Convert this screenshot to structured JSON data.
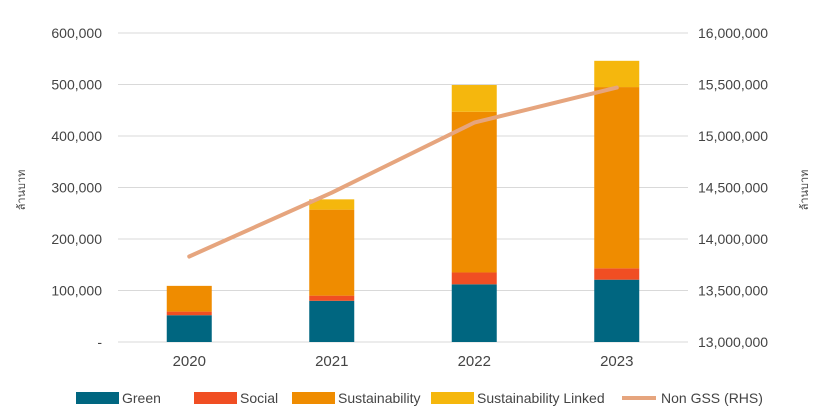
{
  "chart_data": {
    "type": "bar",
    "stacked": true,
    "title": "",
    "categories": [
      "2020",
      "2021",
      "2022",
      "2023"
    ],
    "series": [
      {
        "name": "Green",
        "color": "#006680",
        "values": [
          52000,
          80000,
          112000,
          121000
        ]
      },
      {
        "name": "Social",
        "color": "#f04e23",
        "values": [
          7000,
          10000,
          23000,
          22000
        ]
      },
      {
        "name": "Sustainability",
        "color": "#ef8c00",
        "values": [
          50000,
          167000,
          312000,
          352000
        ]
      },
      {
        "name": "Sustainability Linked",
        "color": "#f5b70d",
        "values": [
          0,
          20000,
          52000,
          51000
        ]
      }
    ],
    "line_series": {
      "name": "Non GSS (RHS)",
      "color": "#e6a57e",
      "axis": "right",
      "values": [
        13830000,
        14450000,
        15130000,
        15470000
      ]
    },
    "left_axis": {
      "label": "ล้านบาท",
      "ylim": [
        0,
        600000
      ],
      "ticks": [
        "-",
        "100,000",
        "200,000",
        "300,000",
        "400,000",
        "500,000",
        "600,000"
      ]
    },
    "right_axis": {
      "label": "ล้านบาท",
      "ylim": [
        13000000,
        16000000
      ],
      "ticks": [
        "13,000,000",
        "13,500,000",
        "14,000,000",
        "14,500,000",
        "15,000,000",
        "15,500,000",
        "16,000,000"
      ]
    },
    "grid": true,
    "legend_position": "bottom",
    "legend": [
      "Green",
      "Social",
      "Sustainability",
      "Sustainability Linked",
      "Non GSS (RHS)"
    ]
  }
}
